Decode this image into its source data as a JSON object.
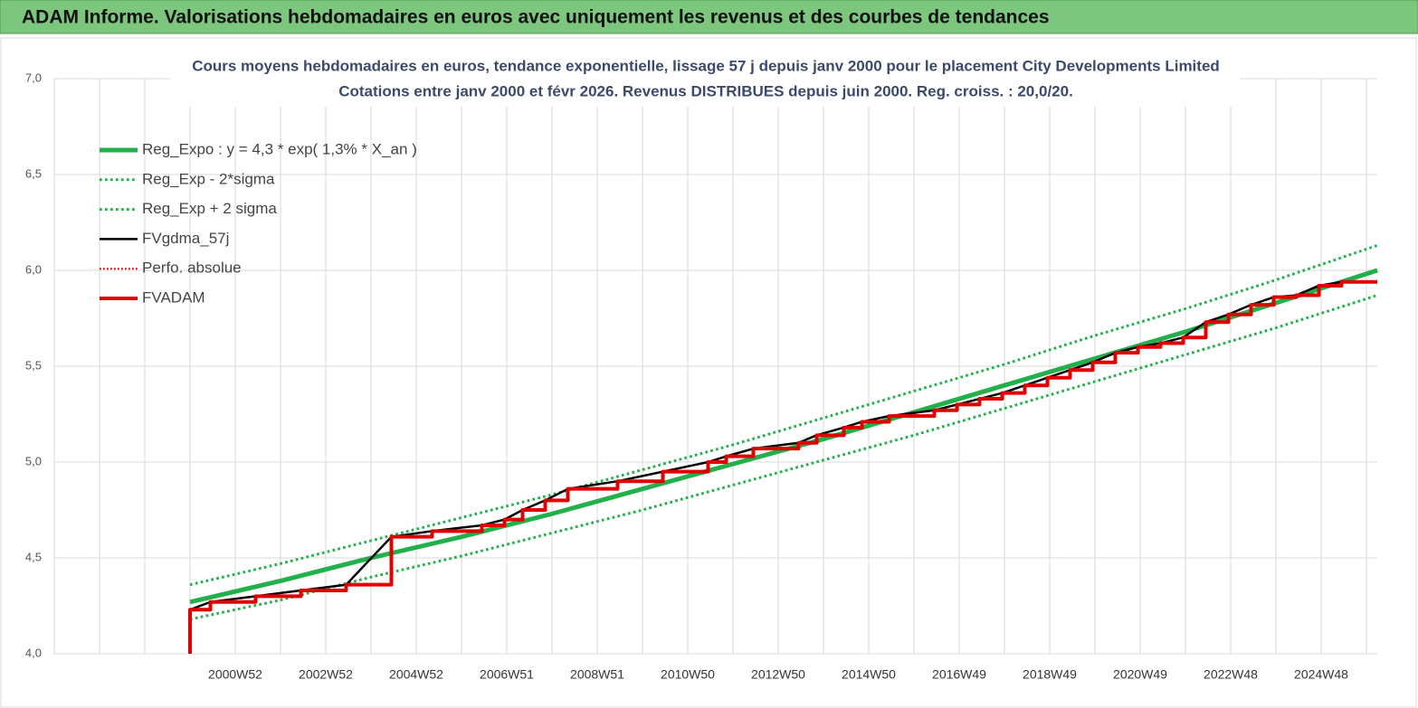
{
  "header": {
    "title": "ADAM Informe. Valorisations hebdomadaires en euros avec uniquement les revenus et des courbes de tendances"
  },
  "chart_data": {
    "type": "line",
    "title": "Cours moyens hebdomadaires en euros, tendance exponentielle, lissage 57 j depuis janv 2000  pour le placement City Developments Limited",
    "subtitle": "Cotations entre janv 2000 et févr 2026. Revenus DISTRIBUES depuis juin 2000.  Reg. croiss. : 20,0/20.",
    "xlim": [
      1997,
      2026.24
    ],
    "xticks": [
      {
        "value": 2001,
        "label": "2000W52"
      },
      {
        "value": 2003,
        "label": "2002W52"
      },
      {
        "value": 2005,
        "label": "2004W52"
      },
      {
        "value": 2007,
        "label": "2006W51"
      },
      {
        "value": 2009,
        "label": "2008W51"
      },
      {
        "value": 2011,
        "label": "2010W50"
      },
      {
        "value": 2013,
        "label": "2012W50"
      },
      {
        "value": 2015,
        "label": "2014W50"
      },
      {
        "value": 2017,
        "label": "2016W49"
      },
      {
        "value": 2019,
        "label": "2018W49"
      },
      {
        "value": 2021,
        "label": "2020W49"
      },
      {
        "value": 2023,
        "label": "2022W48"
      },
      {
        "value": 2025,
        "label": "2024W48"
      }
    ],
    "ylim": [
      4,
      7
    ],
    "yticks": [
      {
        "value": 4,
        "label": "4,0"
      },
      {
        "value": 4.5,
        "label": "4,5"
      },
      {
        "value": 5,
        "label": "5,0"
      },
      {
        "value": 5.5,
        "label": "5,5"
      },
      {
        "value": 6,
        "label": "6,0"
      },
      {
        "value": 6.5,
        "label": "6,5"
      },
      {
        "value": 7,
        "label": "7,0"
      }
    ],
    "grid": true,
    "legend": "upper left",
    "series": [
      {
        "name": "Reg_Expo : y = 4,3 * exp( 1,3% *  X_an )",
        "color": "#22b04a",
        "linestyle": "solid",
        "linewidth": 5,
        "x": [
          2000,
          2002,
          2004,
          2006,
          2008,
          2010,
          2012,
          2014,
          2016,
          2018,
          2020,
          2022,
          2024,
          2026.24
        ],
        "values": [
          4.27,
          4.38,
          4.5,
          4.61,
          4.73,
          4.86,
          4.99,
          5.12,
          5.26,
          5.4,
          5.54,
          5.68,
          5.83,
          6.0
        ]
      },
      {
        "name": "Reg_Exp - 2*sigma",
        "color": "#22b04a",
        "linestyle": "dotted",
        "linewidth": 3,
        "x": [
          2000,
          2002,
          2004,
          2006,
          2008,
          2010,
          2012,
          2014,
          2016,
          2018,
          2020,
          2022,
          2024,
          2026.24
        ],
        "values": [
          4.18,
          4.28,
          4.4,
          4.51,
          4.63,
          4.75,
          4.88,
          5.01,
          5.14,
          5.28,
          5.42,
          5.56,
          5.7,
          5.87
        ]
      },
      {
        "name": "Reg_Exp + 2 sigma",
        "color": "#22b04a",
        "linestyle": "dotted",
        "linewidth": 3,
        "x": [
          2000,
          2002,
          2004,
          2006,
          2008,
          2010,
          2012,
          2014,
          2016,
          2018,
          2020,
          2022,
          2024,
          2026.24
        ],
        "values": [
          4.36,
          4.47,
          4.59,
          4.71,
          4.83,
          4.96,
          5.09,
          5.23,
          5.37,
          5.51,
          5.66,
          5.8,
          5.95,
          6.13
        ]
      },
      {
        "name": "FVgdma_57j",
        "color": "#000000",
        "linestyle": "solid",
        "linewidth": 2.5,
        "x": [
          2000,
          2000.45,
          2001.45,
          2002.45,
          2003.45,
          2004.45,
          2005.35,
          2006.45,
          2006.95,
          2007.35,
          2007.85,
          2008.35,
          2009.45,
          2010.45,
          2011.45,
          2011.85,
          2012.45,
          2013.45,
          2013.85,
          2014.45,
          2014.85,
          2015.45,
          2016.45,
          2016.95,
          2017.45,
          2017.95,
          2018.45,
          2018.95,
          2019.45,
          2019.95,
          2020.45,
          2020.95,
          2021.45,
          2021.95,
          2022.45,
          2022.95,
          2023.45,
          2023.95,
          2024.45,
          2024.95,
          2025.45,
          2026.24
        ],
        "values": [
          4.23,
          4.27,
          4.3,
          4.33,
          4.36,
          4.61,
          4.64,
          4.67,
          4.7,
          4.75,
          4.8,
          4.86,
          4.9,
          4.95,
          5.0,
          5.03,
          5.07,
          5.1,
          5.14,
          5.18,
          5.21,
          5.24,
          5.27,
          5.3,
          5.33,
          5.36,
          5.4,
          5.44,
          5.48,
          5.52,
          5.57,
          5.6,
          5.62,
          5.65,
          5.73,
          5.77,
          5.82,
          5.86,
          5.87,
          5.92,
          5.94,
          5.94
        ]
      },
      {
        "name": "Perfo. absolue",
        "color": "#e00000",
        "linestyle": "dotted",
        "linewidth": 2,
        "x": [],
        "values": []
      },
      {
        "name": "FVADAM",
        "color": "#e00000",
        "linestyle": "solid",
        "linewidth": 4,
        "drawstyle": "steps",
        "x": [
          2000,
          2000,
          2000.45,
          2001.45,
          2002.45,
          2003.45,
          2004.45,
          2005.35,
          2006.45,
          2006.95,
          2007.35,
          2007.85,
          2008.35,
          2009.45,
          2010.45,
          2011.45,
          2011.85,
          2012.45,
          2013.45,
          2013.85,
          2014.45,
          2014.85,
          2015.45,
          2016.45,
          2016.95,
          2017.45,
          2017.95,
          2018.45,
          2018.95,
          2019.45,
          2019.95,
          2020.45,
          2020.95,
          2021.45,
          2021.95,
          2022.45,
          2022.95,
          2023.45,
          2023.95,
          2024.45,
          2024.95,
          2025.45,
          2026.24
        ],
        "values": [
          4.0,
          4.23,
          4.27,
          4.3,
          4.33,
          4.36,
          4.61,
          4.64,
          4.67,
          4.7,
          4.75,
          4.8,
          4.86,
          4.9,
          4.95,
          5.0,
          5.03,
          5.07,
          5.1,
          5.14,
          5.18,
          5.21,
          5.24,
          5.27,
          5.3,
          5.33,
          5.36,
          5.4,
          5.44,
          5.48,
          5.52,
          5.57,
          5.6,
          5.62,
          5.65,
          5.73,
          5.77,
          5.82,
          5.86,
          5.87,
          5.92,
          5.94,
          5.94
        ]
      }
    ]
  }
}
